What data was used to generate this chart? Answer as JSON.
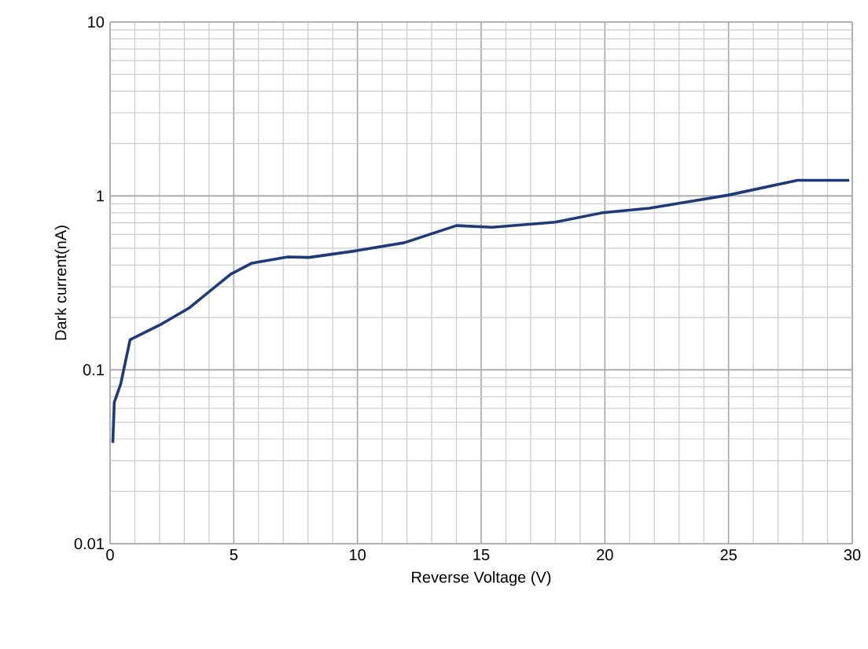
{
  "chart_data": {
    "type": "line",
    "xlabel": "Reverse Voltage (V)",
    "ylabel": "Dark current(nA)",
    "log": "y",
    "grid": true,
    "marker": "none",
    "line_style": "solid",
    "xlim": [
      0,
      30
    ],
    "ylim": [
      0.01,
      10
    ],
    "xticks": [
      0,
      5,
      10,
      15,
      20,
      25,
      30
    ],
    "yticks": [
      0.01,
      0.1,
      1,
      10
    ],
    "series": [
      {
        "color": "#1f3a78",
        "x": [
          0.11,
          0.17,
          0.43,
          0.81,
          2.1,
          3.18,
          4.88,
          5.72,
          7.18,
          8.05,
          9.96,
          11.87,
          14.0,
          15.45,
          17.99,
          19.9,
          21.8,
          24.98,
          27.78,
          29.88
        ],
        "values": [
          0.038,
          0.065,
          0.083,
          0.149,
          0.184,
          0.226,
          0.355,
          0.41,
          0.446,
          0.443,
          0.484,
          0.537,
          0.675,
          0.66,
          0.707,
          0.8,
          0.85,
          1.01,
          1.23,
          1.23
        ]
      }
    ]
  }
}
